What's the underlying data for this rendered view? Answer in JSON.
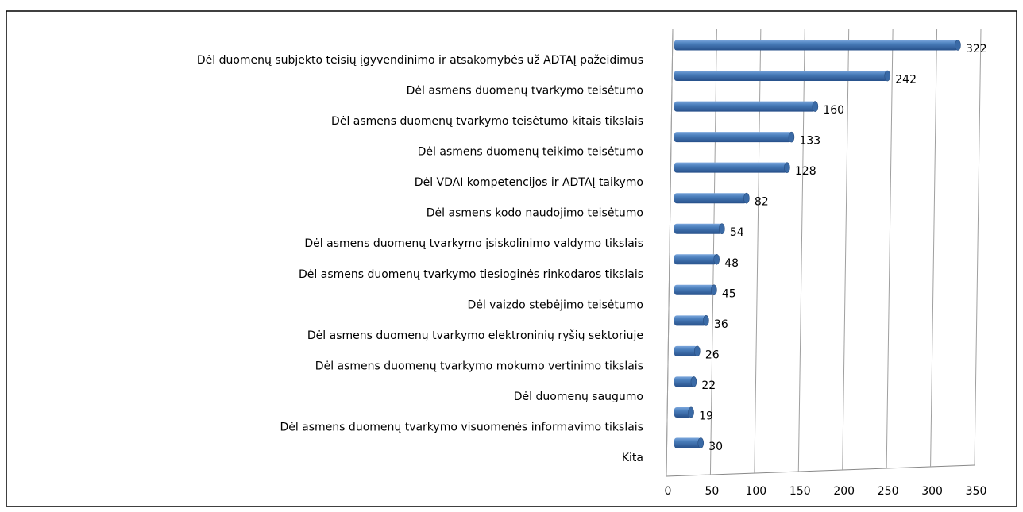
{
  "chart_data": {
    "type": "bar",
    "orientation": "horizontal",
    "categories": [
      "Dėl duomenų subjekto teisių įgyvendinimo ir atsakomybės už ADTAĮ pažeidimus",
      "Dėl asmens duomenų tvarkymo teisėtumo",
      "Dėl asmens duomenų tvarkymo teisėtumo kitais tikslais",
      "Dėl asmens duomenų teikimo teisėtumo",
      "Dėl VDAI kompetencijos ir ADTAĮ taikymo",
      "Dėl asmens kodo naudojimo teisėtumo",
      "Dėl asmens duomenų tvarkymo įsiskolinimo valdymo tikslais",
      "Dėl asmens duomenų tvarkymo tiesioginės rinkodaros tikslais",
      "Dėl vaizdo stebėjimo teisėtumo",
      "Dėl asmens duomenų tvarkymo elektroninių ryšių sektoriuje",
      "Dėl asmens duomenų tvarkymo mokumo vertinimo tikslais",
      "Dėl duomenų saugumo",
      "Dėl asmens duomenų tvarkymo visuomenės informavimo tikslais",
      "Kita"
    ],
    "values": [
      322,
      242,
      160,
      133,
      128,
      82,
      54,
      48,
      45,
      36,
      26,
      22,
      19,
      30
    ],
    "color": "#4a7ebb",
    "xlim": [
      0,
      350
    ],
    "xticks": [
      0,
      50,
      100,
      150,
      200,
      250,
      300,
      350
    ],
    "grid": true
  }
}
